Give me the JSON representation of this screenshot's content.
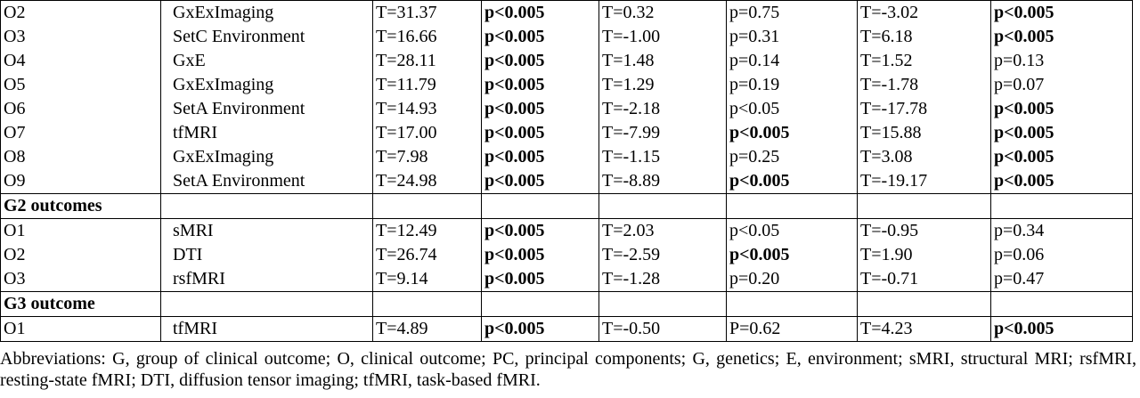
{
  "table": {
    "sections": [
      {
        "rows": [
          [
            "O2",
            "GxExImaging",
            "T=31.37",
            {
              "text": "p<0.005",
              "bold": true
            },
            "T=0.32",
            "p=0.75",
            "T=-3.02",
            {
              "text": "p<0.005",
              "bold": true
            }
          ],
          [
            "O3",
            "SetC Environment",
            "T=16.66",
            {
              "text": "p<0.005",
              "bold": true
            },
            "T=-1.00",
            "p=0.31",
            "T=6.18",
            {
              "text": "p<0.005",
              "bold": true
            }
          ],
          [
            "O4",
            "GxE",
            "T=28.11",
            {
              "text": "p<0.005",
              "bold": true
            },
            "T=1.48",
            "p=0.14",
            "T=1.52",
            "p=0.13"
          ],
          [
            "O5",
            "GxExImaging",
            "T=11.79",
            {
              "text": "p<0.005",
              "bold": true
            },
            "T=1.29",
            "p=0.19",
            "T=-1.78",
            "p=0.07"
          ],
          [
            "O6",
            "SetA Environment",
            "T=14.93",
            {
              "text": "p<0.005",
              "bold": true
            },
            "T=-2.18",
            "p<0.05",
            "T=-17.78",
            {
              "text": "p<0.005",
              "bold": true
            }
          ],
          [
            "O7",
            "tfMRI",
            "T=17.00",
            {
              "text": "p<0.005",
              "bold": true
            },
            "T=-7.99",
            {
              "text": "p<0.005",
              "bold": true
            },
            "T=15.88",
            {
              "text": "p<0.005",
              "bold": true
            }
          ],
          [
            "O8",
            "GxExImaging",
            "T=7.98",
            {
              "text": "p<0.005",
              "bold": true
            },
            "T=-1.15",
            "p=0.25",
            "T=3.08",
            {
              "text": "p<0.005",
              "bold": true
            }
          ],
          [
            "O9",
            "SetA Environment",
            "T=24.98",
            {
              "text": "p<0.005",
              "bold": true
            },
            "T=-8.89",
            {
              "text": "p<0.005",
              "bold": true
            },
            "T=-19.17",
            {
              "text": "p<0.005",
              "bold": true
            }
          ]
        ]
      },
      {
        "heading": "G2 outcomes",
        "rows": [
          [
            "O1",
            "sMRI",
            "T=12.49",
            {
              "text": "p<0.005",
              "bold": true
            },
            "T=2.03",
            "p<0.05",
            "T=-0.95",
            "p=0.34"
          ],
          [
            "O2",
            "DTI",
            "T=26.74",
            {
              "text": "p<0.005",
              "bold": true
            },
            "T=-2.59",
            {
              "text": "p<0.005",
              "bold": true
            },
            "T=1.90",
            "p=0.06"
          ],
          [
            "O3",
            "rsfMRI",
            "T=9.14",
            {
              "text": "p<0.005",
              "bold": true
            },
            "T=-1.28",
            "p=0.20",
            "T=-0.71",
            "p=0.47"
          ]
        ]
      },
      {
        "heading": "G3 outcome",
        "rows": [
          [
            "O1",
            "tfMRI",
            "T=4.89",
            {
              "text": "p<0.005",
              "bold": true
            },
            "T=-0.50",
            "P=0.62",
            "T=4.23",
            {
              "text": "p<0.005",
              "bold": true
            }
          ]
        ]
      }
    ]
  },
  "footnote": "Abbreviations: G, group of clinical outcome; O, clinical outcome; PC, principal components; G, genetics; E, environment; sMRI, structural MRI; rsfMRI, resting-state fMRI; DTI, diffusion tensor imaging; tfMRI, task-based fMRI."
}
